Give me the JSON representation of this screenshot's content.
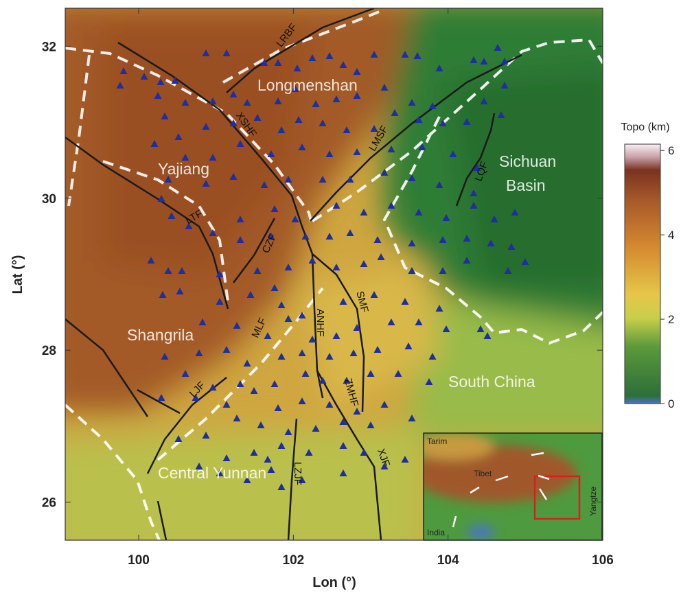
{
  "map": {
    "xlabel": "Lon (°)",
    "ylabel": "Lat (°)",
    "xlim": [
      99.05,
      106
    ],
    "ylim": [
      25.5,
      32.5
    ],
    "xticks": [
      100,
      102,
      104,
      106
    ],
    "yticks": [
      26,
      28,
      30,
      32
    ],
    "regions": [
      "Longmenshan",
      "Yajiang",
      "Sichuan",
      "Basin",
      "Shangrila",
      "South China",
      "Central Yunnan"
    ],
    "faults": [
      "LRBF",
      "XSHF",
      "LMSF",
      "LQF",
      "LTF",
      "CZF",
      "MLF",
      "ANHF",
      "SMF",
      "LJF",
      "ZMHF",
      "XJF",
      "LZJF"
    ],
    "colorbar": {
      "title": "Topo (km)",
      "lim": [
        0,
        6.15
      ],
      "ticks": [
        0,
        2,
        4,
        6
      ]
    },
    "inset": {
      "labels": [
        "Tarim",
        "Tibet",
        "India",
        "Yangtze"
      ]
    }
  }
}
